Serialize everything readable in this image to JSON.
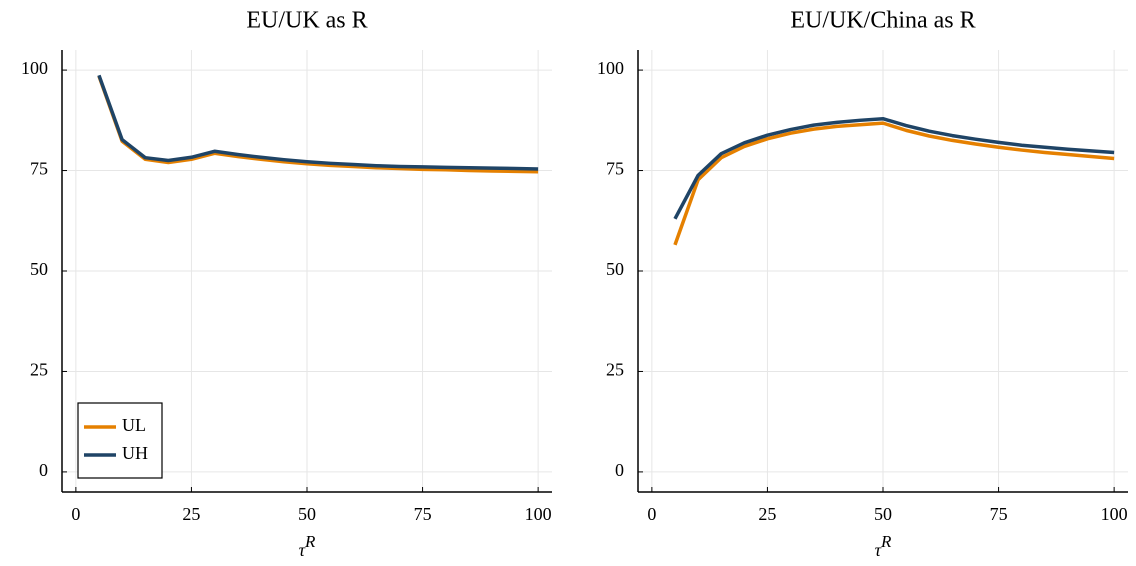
{
  "chart_data": [
    {
      "type": "line",
      "title": "EU/UK as R",
      "xlabel": {
        "base": "τ",
        "superscript": "R"
      },
      "x": [
        5,
        10,
        15,
        20,
        25,
        30,
        35,
        40,
        45,
        50,
        55,
        60,
        65,
        70,
        75,
        80,
        85,
        90,
        95,
        100
      ],
      "series": [
        {
          "name": "UL",
          "color": "#e58000",
          "values": [
            98.5,
            82.3,
            77.8,
            77.0,
            77.8,
            79.3,
            78.5,
            77.8,
            77.2,
            76.7,
            76.3,
            76.0,
            75.7,
            75.5,
            75.3,
            75.2,
            75.0,
            74.9,
            74.8,
            74.7
          ]
        },
        {
          "name": "UH",
          "color": "#1f4466",
          "values": [
            98.7,
            82.7,
            78.2,
            77.5,
            78.3,
            79.8,
            79.0,
            78.3,
            77.7,
            77.2,
            76.8,
            76.5,
            76.2,
            76.0,
            75.9,
            75.8,
            75.7,
            75.6,
            75.5,
            75.4
          ]
        }
      ],
      "xlim": [
        -3,
        103
      ],
      "xticks": [
        0,
        25,
        50,
        75,
        100
      ],
      "ylim": [
        -5,
        105
      ],
      "yticks": [
        0,
        25,
        50,
        75,
        100
      ],
      "grid": true,
      "legend": "bottom-left"
    },
    {
      "type": "line",
      "title": "EU/UK/China as R",
      "xlabel": {
        "base": "τ",
        "superscript": "R"
      },
      "x": [
        5,
        10,
        15,
        20,
        25,
        30,
        35,
        40,
        45,
        50,
        55,
        60,
        65,
        70,
        75,
        80,
        85,
        90,
        95,
        100
      ],
      "series": [
        {
          "color": "#e58000",
          "values": [
            56.5,
            72.7,
            78.2,
            81.0,
            82.9,
            84.3,
            85.3,
            86.0,
            86.4,
            86.8,
            85.0,
            83.6,
            82.5,
            81.6,
            80.8,
            80.1,
            79.5,
            79.0,
            78.5,
            78.0
          ]
        },
        {
          "color": "#1f4466",
          "values": [
            63.0,
            73.8,
            79.2,
            81.9,
            83.8,
            85.2,
            86.3,
            87.0,
            87.5,
            87.9,
            86.2,
            84.8,
            83.7,
            82.8,
            82.0,
            81.3,
            80.8,
            80.3,
            79.9,
            79.5
          ]
        }
      ],
      "xlim": [
        -3,
        103
      ],
      "xticks": [
        0,
        25,
        50,
        75,
        100
      ],
      "ylim": [
        -5,
        105
      ],
      "yticks": [
        0,
        25,
        50,
        75,
        100
      ],
      "grid": true
    }
  ]
}
